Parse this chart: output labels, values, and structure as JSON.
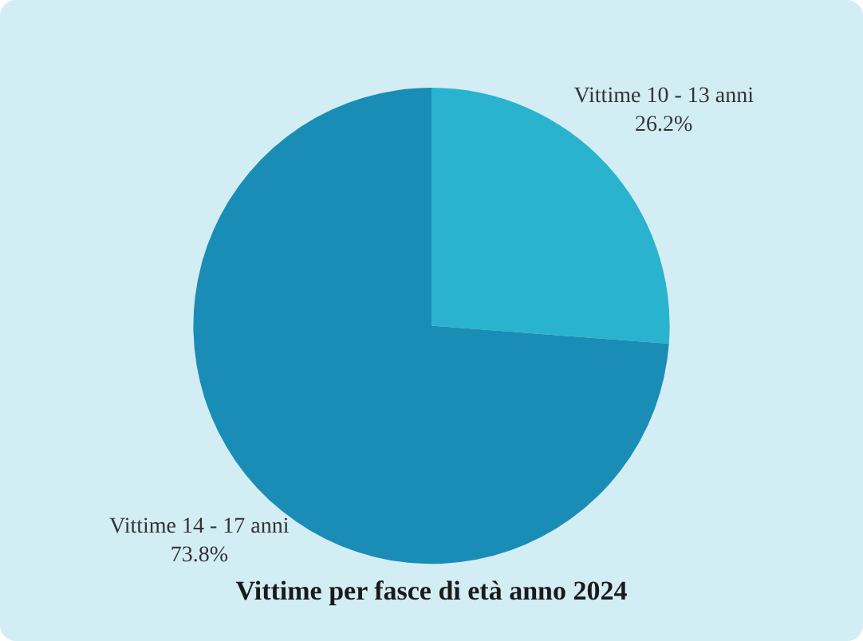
{
  "chart_data": {
    "type": "pie",
    "title": "Vittime per fasce di età anno 2024",
    "categories": [
      "Vittime 10 - 13 anni",
      "Vittime 14 - 17 anni"
    ],
    "values": [
      26.2,
      73.8
    ],
    "colors": [
      "#2ab3cf",
      "#1a8db6"
    ],
    "value_labels": [
      "26.2%",
      "73.8%"
    ],
    "legend": false
  }
}
